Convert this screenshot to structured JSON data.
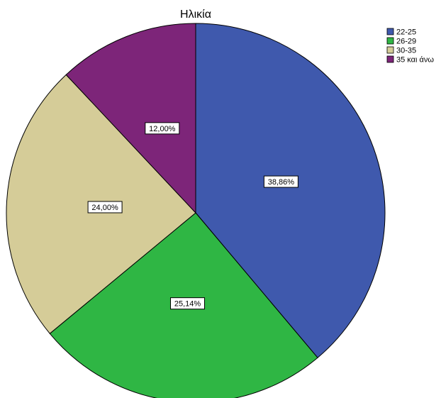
{
  "chart_data": {
    "type": "pie",
    "title": "Ηλικία",
    "categories": [
      "22-25",
      "26-29",
      "30-35",
      "35 και άνω"
    ],
    "values": [
      38.86,
      25.14,
      24.0,
      12.0
    ],
    "data_labels": [
      "38,86%",
      "25,14%",
      "24,00%",
      "12,00%"
    ],
    "colors": [
      "#3f59ad",
      "#2fb644",
      "#d5cc98",
      "#7d2579"
    ],
    "legend": {
      "position": "top-right",
      "entries": [
        "22-25",
        "26-29",
        "30-35",
        "35 και άνω"
      ]
    },
    "start": "12 o'clock",
    "direction": "clockwise"
  }
}
